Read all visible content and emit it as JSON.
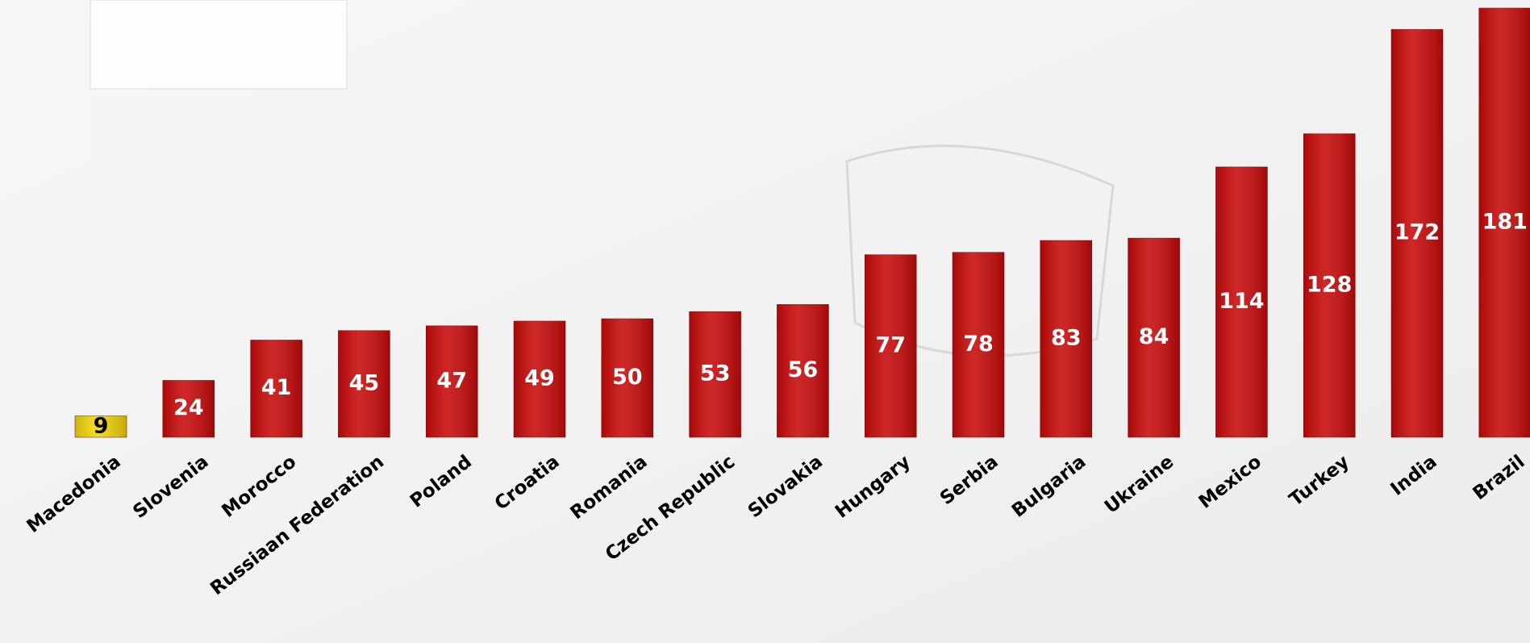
{
  "chart_data": {
    "type": "bar",
    "categories": [
      "Macedonia",
      "Slovenia",
      "Morocco",
      "Russiaan Federation",
      "Poland",
      "Croatia",
      "Romania",
      "Czech Republic",
      "Slovakia",
      "Hungary",
      "Serbia",
      "Bulgaria",
      "Ukraine",
      "Mexico",
      "Turkey",
      "India",
      "Brazil"
    ],
    "values": [
      9,
      24,
      41,
      45,
      47,
      49,
      50,
      53,
      56,
      77,
      78,
      83,
      84,
      114,
      128,
      172,
      181
    ],
    "colors": [
      "#f2d40a",
      "#c80a0a",
      "#c80a0a",
      "#c80a0a",
      "#c80a0a",
      "#c80a0a",
      "#c80a0a",
      "#c80a0a",
      "#c80a0a",
      "#c80a0a",
      "#c80a0a",
      "#c80a0a",
      "#c80a0a",
      "#c80a0a",
      "#c80a0a",
      "#c80a0a",
      "#c80a0a"
    ],
    "label_colors": [
      "#000000",
      "#ffffff",
      "#ffffff",
      "#ffffff",
      "#ffffff",
      "#ffffff",
      "#ffffff",
      "#ffffff",
      "#ffffff",
      "#ffffff",
      "#ffffff",
      "#ffffff",
      "#ffffff",
      "#ffffff",
      "#ffffff",
      "#ffffff",
      "#ffffff"
    ]
  }
}
